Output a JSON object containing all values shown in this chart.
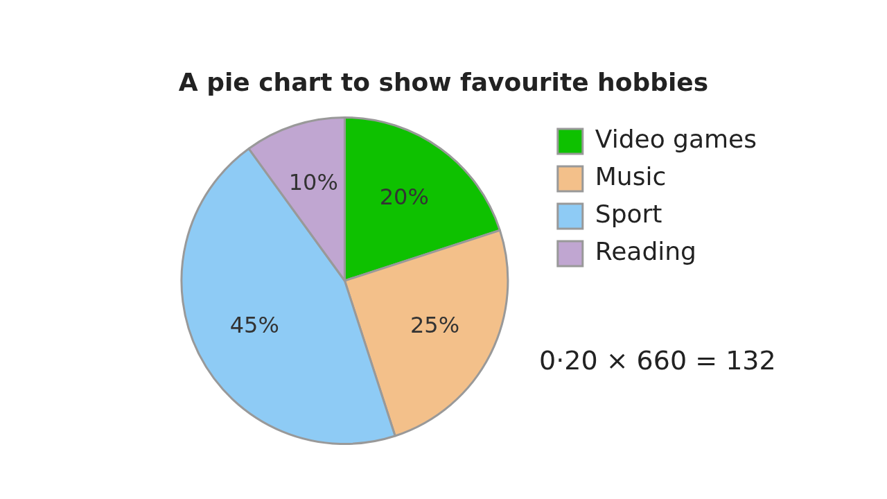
{
  "chart_data": {
    "type": "pie",
    "title": "A pie chart to show favourite hobbies",
    "categories": [
      "Video games",
      "Music",
      "Sport",
      "Reading"
    ],
    "values": [
      20,
      25,
      45,
      10
    ],
    "colors": [
      "#0ec100",
      "#f3c08a",
      "#8ecbf5",
      "#c0a6d1"
    ],
    "value_labels": [
      "20%",
      "25%",
      "45%",
      "10%"
    ],
    "legend": "right",
    "annotations": [
      "0·20 × 660 = 132"
    ]
  }
}
